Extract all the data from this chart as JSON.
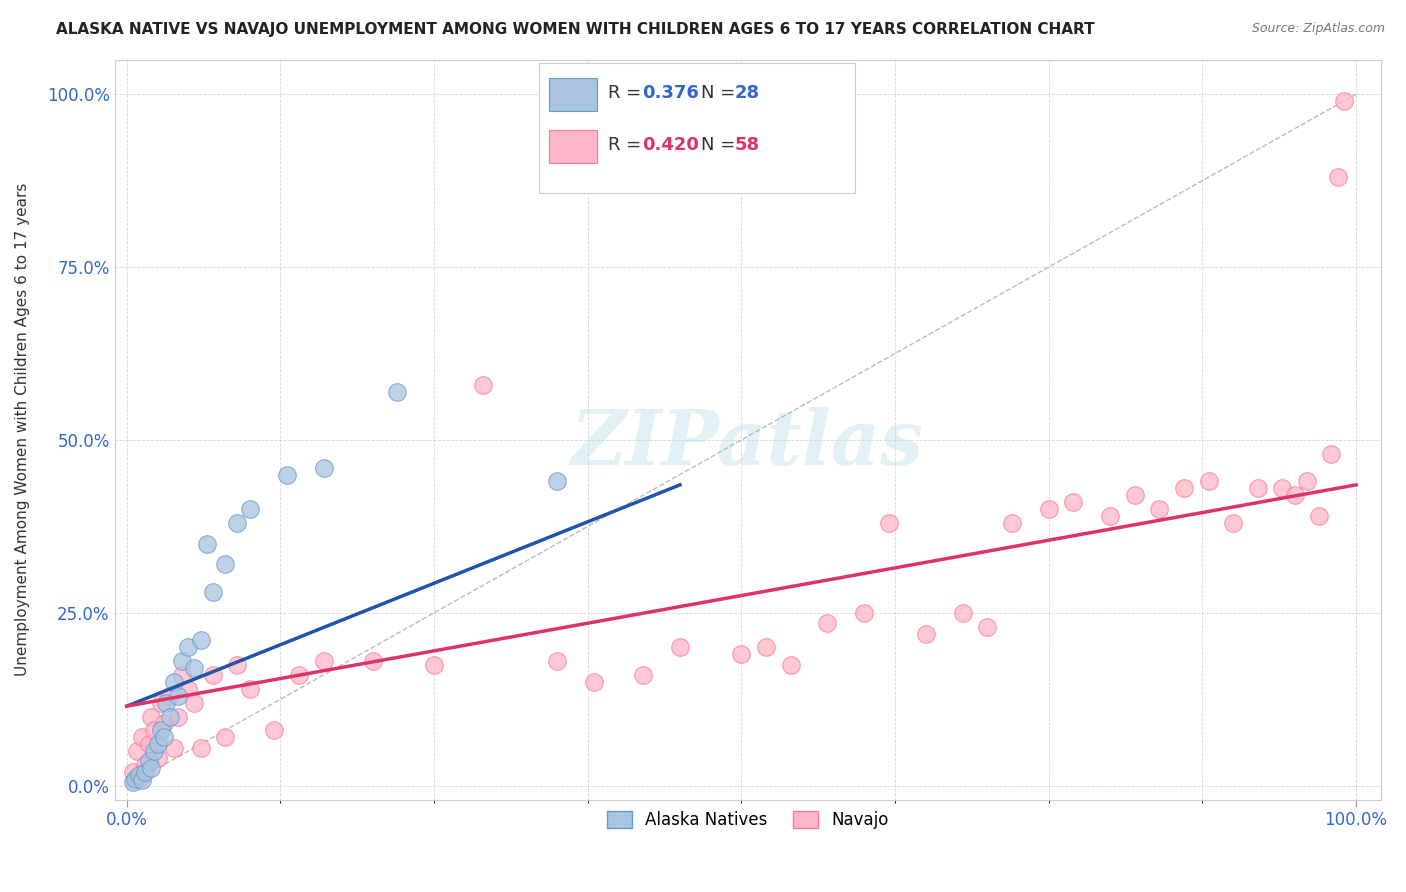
{
  "title": "ALASKA NATIVE VS NAVAJO UNEMPLOYMENT AMONG WOMEN WITH CHILDREN AGES 6 TO 17 YEARS CORRELATION CHART",
  "source": "Source: ZipAtlas.com",
  "ylabel": "Unemployment Among Women with Children Ages 6 to 17 years",
  "legend_label_alaska": "Alaska Natives",
  "legend_label_navajo": "Navajo",
  "legend_r_alaska": "R = ",
  "legend_r_val_alaska": "0.376",
  "legend_n_alaska": "N = ",
  "legend_n_val_alaska": "28",
  "legend_r_navajo": "R = ",
  "legend_r_val_navajo": "0.420",
  "legend_n_navajo": "N = ",
  "legend_n_val_navajo": "58",
  "xlim": [
    -0.01,
    1.02
  ],
  "ylim": [
    -0.02,
    1.05
  ],
  "alaska_color": "#A8C4E0",
  "alaska_edge_color": "#6699CC",
  "navajo_color": "#FFB6C8",
  "navajo_edge_color": "#FF7799",
  "alaska_line_color": "#2255AA",
  "navajo_line_color": "#DD3366",
  "r_n_color_alaska": "#3366CC",
  "r_n_color_navajo": "#DD3366",
  "watermark": "ZIPatlas",
  "alaska_x": [
    0.005,
    0.007,
    0.01,
    0.012,
    0.015,
    0.018,
    0.02,
    0.022,
    0.025,
    0.028,
    0.03,
    0.032,
    0.035,
    0.038,
    0.042,
    0.045,
    0.05,
    0.055,
    0.06,
    0.065,
    0.07,
    0.08,
    0.09,
    0.1,
    0.13,
    0.16,
    0.22,
    0.35
  ],
  "alaska_y": [
    0.005,
    0.01,
    0.015,
    0.008,
    0.02,
    0.035,
    0.025,
    0.05,
    0.06,
    0.08,
    0.07,
    0.12,
    0.1,
    0.15,
    0.13,
    0.18,
    0.2,
    0.17,
    0.21,
    0.35,
    0.28,
    0.32,
    0.38,
    0.4,
    0.45,
    0.46,
    0.57,
    0.44
  ],
  "navajo_x": [
    0.005,
    0.008,
    0.01,
    0.012,
    0.015,
    0.018,
    0.02,
    0.022,
    0.025,
    0.028,
    0.03,
    0.035,
    0.038,
    0.042,
    0.045,
    0.05,
    0.055,
    0.06,
    0.07,
    0.08,
    0.09,
    0.1,
    0.12,
    0.14,
    0.16,
    0.2,
    0.25,
    0.29,
    0.35,
    0.38,
    0.42,
    0.45,
    0.5,
    0.52,
    0.54,
    0.57,
    0.6,
    0.62,
    0.65,
    0.68,
    0.7,
    0.72,
    0.75,
    0.77,
    0.8,
    0.82,
    0.84,
    0.86,
    0.88,
    0.9,
    0.92,
    0.94,
    0.95,
    0.96,
    0.97,
    0.98,
    0.985,
    0.99
  ],
  "navajo_y": [
    0.02,
    0.05,
    0.01,
    0.07,
    0.03,
    0.06,
    0.1,
    0.08,
    0.04,
    0.12,
    0.09,
    0.13,
    0.055,
    0.1,
    0.16,
    0.14,
    0.12,
    0.055,
    0.16,
    0.07,
    0.175,
    0.14,
    0.08,
    0.16,
    0.18,
    0.18,
    0.175,
    0.58,
    0.18,
    0.15,
    0.16,
    0.2,
    0.19,
    0.2,
    0.175,
    0.235,
    0.25,
    0.38,
    0.22,
    0.25,
    0.23,
    0.38,
    0.4,
    0.41,
    0.39,
    0.42,
    0.4,
    0.43,
    0.44,
    0.38,
    0.43,
    0.43,
    0.42,
    0.44,
    0.39,
    0.48,
    0.88,
    0.99
  ],
  "alaska_line_x0": 0.0,
  "alaska_line_y0": 0.115,
  "alaska_line_x1": 0.45,
  "alaska_line_y1": 0.435,
  "navajo_line_x0": 0.0,
  "navajo_line_y0": 0.115,
  "navajo_line_x1": 1.0,
  "navajo_line_y1": 0.435
}
